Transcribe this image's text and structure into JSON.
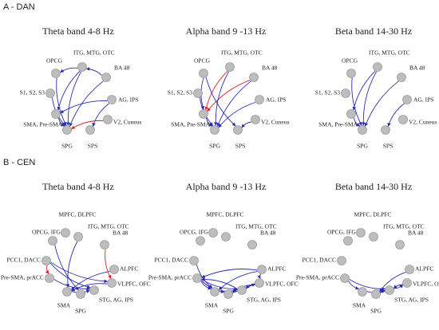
{
  "sections": [
    {
      "label": "A - DAN",
      "nodes": [
        "OPCG",
        "ITG, MTG, OTC",
        "BA 48",
        "S1, S2, S3",
        "AG, IPS",
        "SMA, Pre-SMA",
        "V2, Cuneus",
        "SPG",
        "SPS"
      ],
      "panels": [
        {
          "title": "Theta band 4-8 Hz"
        },
        {
          "title": "Alpha band 9 -13 Hz"
        },
        {
          "title": "Beta band 14-30 Hz"
        }
      ]
    },
    {
      "label": "B - CEN",
      "nodes": [
        "MPFC, DLPFC",
        "OPCG, IFG",
        "ITG, MTG, OTC",
        "BA 48",
        "PCC1, DACC",
        "ALPFC",
        "Pre-SMA, prACC",
        "VLPFC, OFC",
        "SMA",
        "STG, AG, IPS",
        "SPG"
      ],
      "panels": [
        {
          "title": "Theta band 4-8 Hz"
        },
        {
          "title": "Alpha band 9 -13 Hz"
        },
        {
          "title": "Beta band 14-30 Hz"
        }
      ]
    }
  ]
}
